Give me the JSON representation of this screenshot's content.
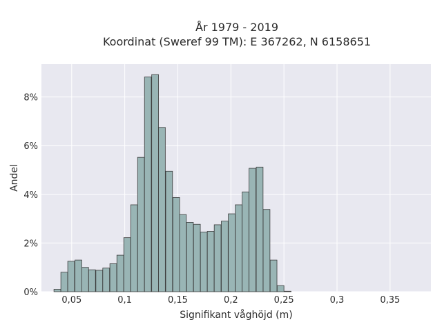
{
  "chart_data": {
    "type": "bar",
    "title_lines": [
      "År 1979 - 2019",
      "Koordinat (Sweref 99 TM): E 367262, N 6158651"
    ],
    "xlabel": "Signifikant våghöjd (m)",
    "ylabel": "Andel",
    "xlim": [
      0.0215,
      0.3885
    ],
    "ylim": [
      0,
      9.35
    ],
    "x_ticks": [
      0.05,
      0.1,
      0.15,
      0.2,
      0.25,
      0.3,
      0.35
    ],
    "x_tick_labels": [
      "0,05",
      "0,1",
      "0,15",
      "0,2",
      "0,25",
      "0,3",
      "0,35"
    ],
    "y_ticks": [
      0,
      2,
      4,
      6,
      8
    ],
    "y_tick_labels": [
      "0%",
      "2%",
      "4%",
      "6%",
      "8%"
    ],
    "bar_width": 0.0064,
    "bars": [
      {
        "x": 0.0365,
        "value": 0.1
      },
      {
        "x": 0.043,
        "value": 0.8
      },
      {
        "x": 0.0495,
        "value": 1.25
      },
      {
        "x": 0.0563,
        "value": 1.3
      },
      {
        "x": 0.0627,
        "value": 1.0
      },
      {
        "x": 0.0692,
        "value": 0.9
      },
      {
        "x": 0.076,
        "value": 0.88
      },
      {
        "x": 0.0825,
        "value": 0.97
      },
      {
        "x": 0.0892,
        "value": 1.15
      },
      {
        "x": 0.0958,
        "value": 1.5
      },
      {
        "x": 0.1023,
        "value": 2.22
      },
      {
        "x": 0.1088,
        "value": 3.57
      },
      {
        "x": 0.1153,
        "value": 5.52
      },
      {
        "x": 0.1218,
        "value": 8.82
      },
      {
        "x": 0.1286,
        "value": 8.92
      },
      {
        "x": 0.135,
        "value": 6.75
      },
      {
        "x": 0.1418,
        "value": 4.95
      },
      {
        "x": 0.1485,
        "value": 3.87
      },
      {
        "x": 0.1548,
        "value": 3.17
      },
      {
        "x": 0.1614,
        "value": 2.85
      },
      {
        "x": 0.168,
        "value": 2.77
      },
      {
        "x": 0.1745,
        "value": 2.45
      },
      {
        "x": 0.181,
        "value": 2.48
      },
      {
        "x": 0.1875,
        "value": 2.75
      },
      {
        "x": 0.1942,
        "value": 2.9
      },
      {
        "x": 0.2008,
        "value": 3.2
      },
      {
        "x": 0.2073,
        "value": 3.57
      },
      {
        "x": 0.2138,
        "value": 4.1
      },
      {
        "x": 0.2203,
        "value": 5.07
      },
      {
        "x": 0.2271,
        "value": 5.12
      },
      {
        "x": 0.2336,
        "value": 3.38
      },
      {
        "x": 0.2402,
        "value": 1.3
      },
      {
        "x": 0.2468,
        "value": 0.25
      },
      {
        "x": 0.2535,
        "value": 0.02
      }
    ],
    "grid": true,
    "bar_color": "#99b5b5",
    "bar_edge_color": "#3a3a3a",
    "plot_background": "#e8e8f0"
  }
}
